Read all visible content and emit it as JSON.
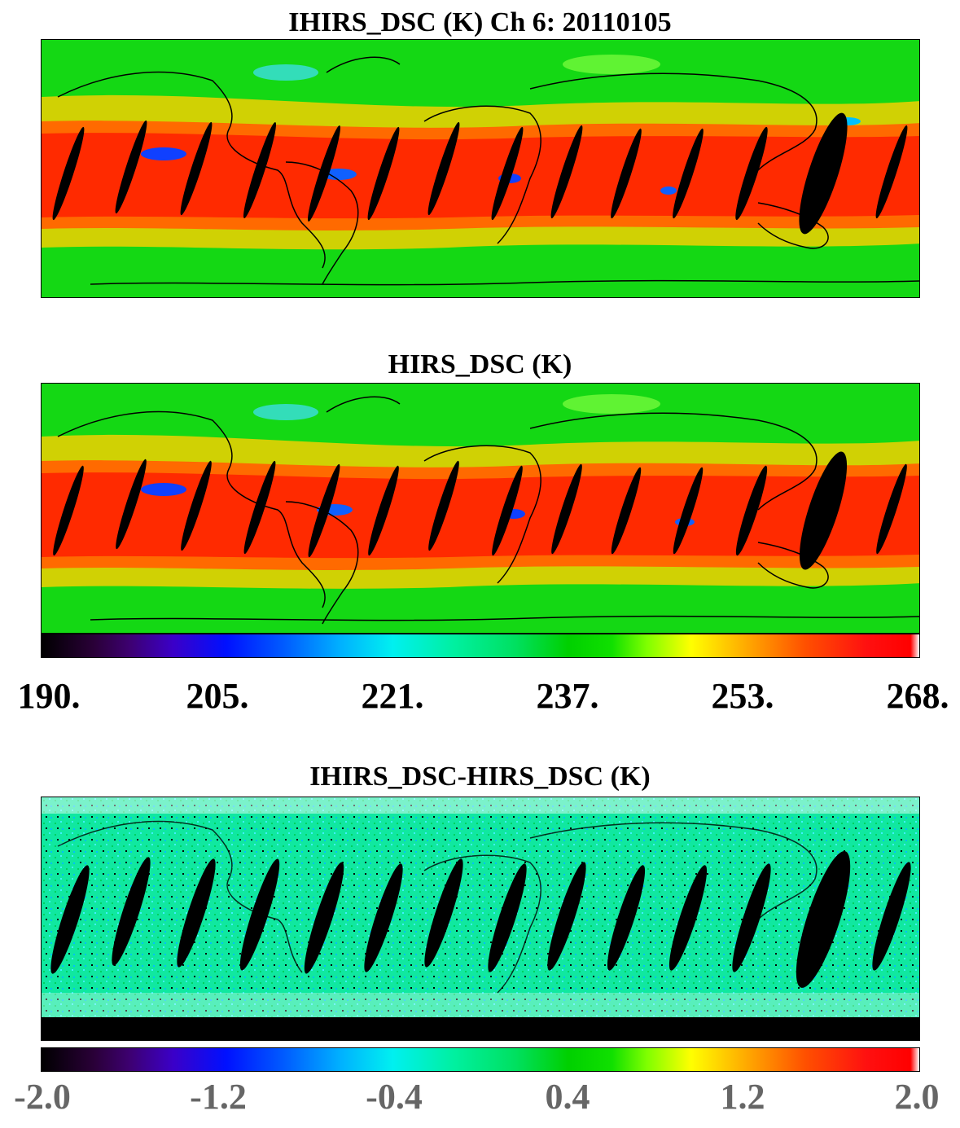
{
  "panel1": {
    "title": "IHIRS_DSC (K) Ch 6: 20110105"
  },
  "panel2": {
    "title": "HIRS_DSC (K)"
  },
  "colorbar1": {
    "ticks": [
      "190.",
      "205.",
      "221.",
      "237.",
      "253.",
      "268."
    ]
  },
  "panel3": {
    "title": "IHIRS_DSC-HIRS_DSC (K)"
  },
  "colorbar2": {
    "ticks": [
      "-2.0",
      "-1.2",
      "-0.4",
      "0.4",
      "1.2",
      "2.0"
    ]
  },
  "colors": {
    "tropics": "#ff3000",
    "midlat": "#ffd000",
    "background": "#12d812",
    "gaps": "#000000",
    "diff_background": "#10e8a0"
  }
}
